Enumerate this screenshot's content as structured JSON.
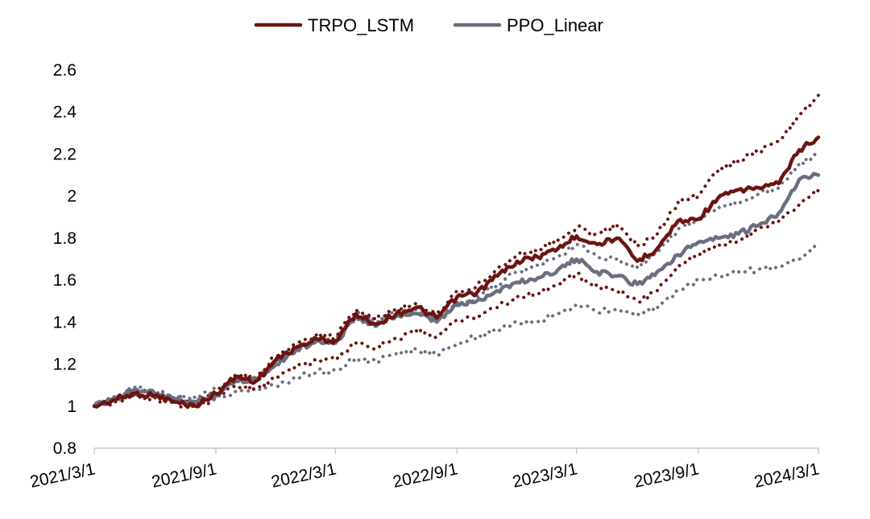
{
  "chart_data": {
    "type": "line",
    "title": "",
    "xlabel": "",
    "ylabel": "",
    "ylim": [
      0.8,
      2.6
    ],
    "yticks": [
      "0.8",
      "1",
      "1.2",
      "1.4",
      "1.6",
      "1.8",
      "2",
      "2.2",
      "2.4",
      "2.6"
    ],
    "xlim": [
      "2021/3/1",
      "2024/3/1"
    ],
    "xticks": [
      "2021/3/1",
      "2021/9/1",
      "2022/3/1",
      "2022/9/1",
      "2023/3/1",
      "2023/9/1",
      "2024/3/1"
    ],
    "grid": false,
    "legend_position": "top-center",
    "colors": {
      "TRPO_LSTM": "#6b1410",
      "PPO_Linear": "#6b6f80"
    },
    "series": [
      {
        "name": "TRPO_LSTM",
        "style": "solid",
        "color": "#6b1410",
        "x": [
          "2021/3/1",
          "2021/4/1",
          "2021/5/1",
          "2021/6/1",
          "2021/7/1",
          "2021/8/1",
          "2021/9/1",
          "2021/10/1",
          "2021/11/1",
          "2021/12/1",
          "2022/1/1",
          "2022/2/1",
          "2022/3/1",
          "2022/4/1",
          "2022/5/1",
          "2022/6/1",
          "2022/7/1",
          "2022/8/1",
          "2022/9/1",
          "2022/10/1",
          "2022/11/1",
          "2022/12/1",
          "2023/1/1",
          "2023/2/1",
          "2023/3/1",
          "2023/4/1",
          "2023/5/1",
          "2023/6/1",
          "2023/7/1",
          "2023/8/1",
          "2023/9/1",
          "2023/10/1",
          "2023/11/1",
          "2023/12/1",
          "2024/1/1",
          "2024/2/1",
          "2024/3/1"
        ],
        "values": [
          1.0,
          1.03,
          1.06,
          1.05,
          1.02,
          1.0,
          1.06,
          1.14,
          1.12,
          1.22,
          1.28,
          1.32,
          1.31,
          1.44,
          1.39,
          1.44,
          1.47,
          1.42,
          1.52,
          1.54,
          1.62,
          1.69,
          1.71,
          1.75,
          1.81,
          1.77,
          1.8,
          1.69,
          1.75,
          1.88,
          1.89,
          1.99,
          2.03,
          2.04,
          2.06,
          2.22,
          2.28
        ]
      },
      {
        "name": "PPO_Linear",
        "style": "solid",
        "color": "#6b6f80",
        "x": [
          "2021/3/1",
          "2021/4/1",
          "2021/5/1",
          "2021/6/1",
          "2021/7/1",
          "2021/8/1",
          "2021/9/1",
          "2021/10/1",
          "2021/11/1",
          "2021/12/1",
          "2022/1/1",
          "2022/2/1",
          "2022/3/1",
          "2022/4/1",
          "2022/5/1",
          "2022/6/1",
          "2022/7/1",
          "2022/8/1",
          "2022/9/1",
          "2022/10/1",
          "2022/11/1",
          "2022/12/1",
          "2023/1/1",
          "2023/2/1",
          "2023/3/1",
          "2023/4/1",
          "2023/5/1",
          "2023/6/1",
          "2023/7/1",
          "2023/8/1",
          "2023/9/1",
          "2023/10/1",
          "2023/11/1",
          "2023/12/1",
          "2024/1/1",
          "2024/2/1",
          "2024/3/1"
        ],
        "values": [
          1.0,
          1.04,
          1.08,
          1.06,
          1.03,
          1.02,
          1.05,
          1.12,
          1.13,
          1.2,
          1.27,
          1.31,
          1.3,
          1.43,
          1.38,
          1.43,
          1.44,
          1.4,
          1.48,
          1.5,
          1.55,
          1.59,
          1.61,
          1.65,
          1.7,
          1.64,
          1.62,
          1.58,
          1.64,
          1.72,
          1.78,
          1.8,
          1.82,
          1.86,
          1.92,
          2.08,
          2.1
        ]
      },
      {
        "name": "",
        "style": "dotted",
        "color": "#6b1410",
        "x": [
          "2021/3/1",
          "2021/4/1",
          "2021/5/1",
          "2021/6/1",
          "2021/7/1",
          "2021/8/1",
          "2021/9/1",
          "2021/10/1",
          "2021/11/1",
          "2021/12/1",
          "2022/1/1",
          "2022/2/1",
          "2022/3/1",
          "2022/4/1",
          "2022/5/1",
          "2022/6/1",
          "2022/7/1",
          "2022/8/1",
          "2022/9/1",
          "2022/10/1",
          "2022/11/1",
          "2022/12/1",
          "2023/1/1",
          "2023/2/1",
          "2023/3/1",
          "2023/4/1",
          "2023/5/1",
          "2023/6/1",
          "2023/7/1",
          "2023/8/1",
          "2023/9/1",
          "2023/10/1",
          "2023/11/1",
          "2023/12/1",
          "2024/1/1",
          "2024/2/1",
          "2024/3/1"
        ],
        "values": [
          1.0,
          1.04,
          1.07,
          1.06,
          1.03,
          1.01,
          1.07,
          1.15,
          1.14,
          1.24,
          1.3,
          1.34,
          1.33,
          1.46,
          1.41,
          1.46,
          1.49,
          1.44,
          1.55,
          1.57,
          1.65,
          1.72,
          1.74,
          1.79,
          1.85,
          1.82,
          1.86,
          1.76,
          1.82,
          1.97,
          2.0,
          2.12,
          2.17,
          2.21,
          2.26,
          2.38,
          2.48
        ]
      },
      {
        "name": "",
        "style": "dotted",
        "color": "#6b1410",
        "x": [
          "2021/3/1",
          "2021/4/1",
          "2021/5/1",
          "2021/6/1",
          "2021/7/1",
          "2021/8/1",
          "2021/9/1",
          "2021/10/1",
          "2021/11/1",
          "2021/12/1",
          "2022/1/1",
          "2022/2/1",
          "2022/3/1",
          "2022/4/1",
          "2022/5/1",
          "2022/6/1",
          "2022/7/1",
          "2022/8/1",
          "2022/9/1",
          "2022/10/1",
          "2022/11/1",
          "2022/12/1",
          "2023/1/1",
          "2023/2/1",
          "2023/3/1",
          "2023/4/1",
          "2023/5/1",
          "2023/6/1",
          "2023/7/1",
          "2023/8/1",
          "2023/9/1",
          "2023/10/1",
          "2023/11/1",
          "2023/12/1",
          "2024/1/1",
          "2024/2/1",
          "2024/3/1"
        ],
        "values": [
          1.0,
          1.02,
          1.05,
          1.04,
          1.01,
          0.99,
          1.04,
          1.1,
          1.08,
          1.14,
          1.18,
          1.22,
          1.22,
          1.3,
          1.28,
          1.32,
          1.36,
          1.33,
          1.41,
          1.43,
          1.47,
          1.52,
          1.54,
          1.58,
          1.63,
          1.57,
          1.55,
          1.5,
          1.55,
          1.67,
          1.72,
          1.76,
          1.79,
          1.84,
          1.88,
          1.96,
          2.03
        ]
      },
      {
        "name": "",
        "style": "dotted",
        "color": "#6b6f80",
        "x": [
          "2021/3/1",
          "2021/4/1",
          "2021/5/1",
          "2021/6/1",
          "2021/7/1",
          "2021/8/1",
          "2021/9/1",
          "2021/10/1",
          "2021/11/1",
          "2021/12/1",
          "2022/1/1",
          "2022/2/1",
          "2022/3/1",
          "2022/4/1",
          "2022/5/1",
          "2022/6/1",
          "2022/7/1",
          "2022/8/1",
          "2022/9/1",
          "2022/10/1",
          "2022/11/1",
          "2022/12/1",
          "2023/1/1",
          "2023/2/1",
          "2023/3/1",
          "2023/4/1",
          "2023/5/1",
          "2023/6/1",
          "2023/7/1",
          "2023/8/1",
          "2023/9/1",
          "2023/10/1",
          "2023/11/1",
          "2023/12/1",
          "2024/1/1",
          "2024/2/1",
          "2024/3/1"
        ],
        "values": [
          1.0,
          1.05,
          1.09,
          1.07,
          1.05,
          1.04,
          1.08,
          1.13,
          1.12,
          1.21,
          1.28,
          1.32,
          1.31,
          1.45,
          1.4,
          1.45,
          1.46,
          1.41,
          1.49,
          1.52,
          1.58,
          1.64,
          1.67,
          1.71,
          1.77,
          1.71,
          1.7,
          1.66,
          1.73,
          1.84,
          1.89,
          1.95,
          1.97,
          2.01,
          2.04,
          2.15,
          2.2
        ]
      },
      {
        "name": "",
        "style": "dotted",
        "color": "#6b6f80",
        "x": [
          "2021/3/1",
          "2021/4/1",
          "2021/5/1",
          "2021/6/1",
          "2021/7/1",
          "2021/8/1",
          "2021/9/1",
          "2021/10/1",
          "2021/11/1",
          "2021/12/1",
          "2022/1/1",
          "2022/2/1",
          "2022/3/1",
          "2022/4/1",
          "2022/5/1",
          "2022/6/1",
          "2022/7/1",
          "2022/8/1",
          "2022/9/1",
          "2022/10/1",
          "2022/11/1",
          "2022/12/1",
          "2023/1/1",
          "2023/2/1",
          "2023/3/1",
          "2023/4/1",
          "2023/5/1",
          "2023/6/1",
          "2023/7/1",
          "2023/8/1",
          "2023/9/1",
          "2023/10/1",
          "2023/11/1",
          "2023/12/1",
          "2024/1/1",
          "2024/2/1",
          "2024/3/1"
        ],
        "values": [
          1.0,
          1.03,
          1.06,
          1.06,
          1.04,
          1.03,
          1.04,
          1.07,
          1.08,
          1.1,
          1.13,
          1.17,
          1.17,
          1.23,
          1.21,
          1.25,
          1.27,
          1.24,
          1.3,
          1.33,
          1.36,
          1.4,
          1.4,
          1.44,
          1.48,
          1.45,
          1.46,
          1.43,
          1.47,
          1.55,
          1.6,
          1.62,
          1.64,
          1.65,
          1.66,
          1.7,
          1.78
        ]
      }
    ]
  }
}
